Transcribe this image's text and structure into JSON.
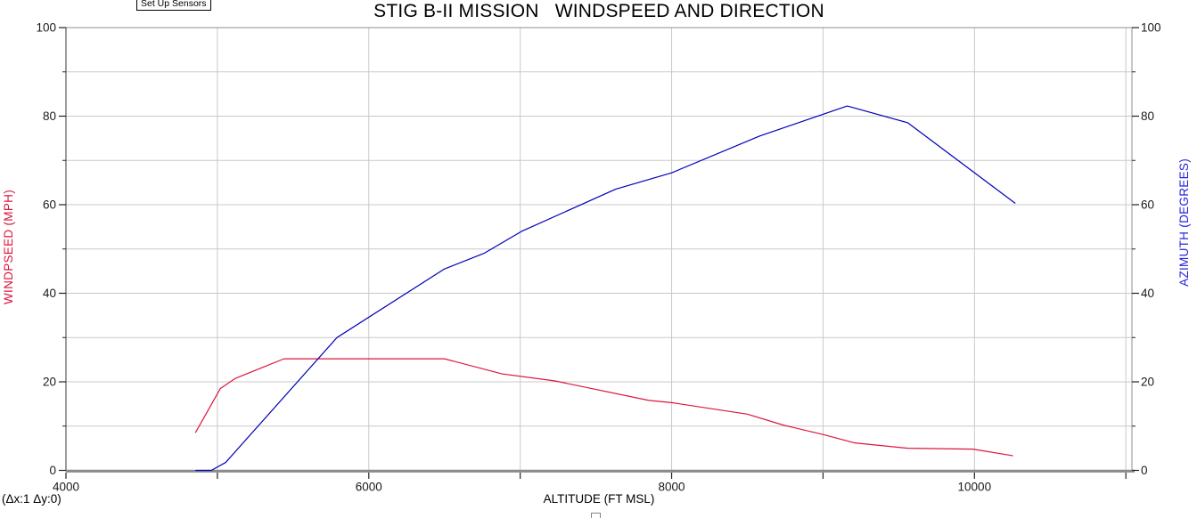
{
  "toolbar": {
    "setup_sensors_label": "Set Up Sensors"
  },
  "overlay": {
    "delta_readout": "(Δx:1 Δy:0)"
  },
  "chart_data": {
    "type": "line",
    "title": "STIG B-II MISSION   WINDSPEED AND DIRECTION",
    "grid": true,
    "plot_colors": {
      "gridline": "#c9c9c9",
      "spine_top_right": "#8f8f8f",
      "spine_left": "#3a3a3a",
      "spine_bottom": "#8a8a8a",
      "tick": "#222222",
      "tick_label": "#1a1a1a"
    },
    "x_axis": {
      "label": "ALTITUDE (FT MSL)",
      "min": 4000,
      "max": 11040,
      "major_ticks": [
        4000,
        6000,
        8000,
        10000
      ],
      "minor_ticks": [
        5000,
        7000,
        9000,
        11000
      ],
      "gridlines": [
        5000,
        6000,
        7000,
        8000,
        9000,
        10000,
        11000
      ]
    },
    "y_axis_left": {
      "label": "WINDPSEED (MPH)",
      "color": "#dc143c",
      "min": 0,
      "max": 100,
      "major_ticks": [
        0,
        20,
        40,
        60,
        80,
        100
      ],
      "minor_ticks": [
        10,
        30,
        50,
        70,
        90
      ],
      "gridlines": [
        10,
        20,
        30,
        40,
        50,
        60,
        70,
        80,
        90
      ]
    },
    "y_axis_right": {
      "label": "AZIMUTH (DEGREES)",
      "color": "#2222dd",
      "min": 0,
      "max": 100,
      "major_ticks": [
        0,
        20,
        40,
        60,
        80,
        100
      ],
      "minor_ticks": [
        10,
        30,
        50,
        70,
        90
      ]
    },
    "series": [
      {
        "name": "windspeed",
        "axis": "left",
        "color": "#dc143c",
        "points": [
          [
            4855,
            8.5
          ],
          [
            5020,
            18.5
          ],
          [
            5120,
            20.8
          ],
          [
            5280,
            23.0
          ],
          [
            5440,
            25.2
          ],
          [
            6500,
            25.2
          ],
          [
            6880,
            21.8
          ],
          [
            7230,
            20.2
          ],
          [
            7850,
            15.8
          ],
          [
            8000,
            15.3
          ],
          [
            8500,
            12.7
          ],
          [
            8740,
            10.2
          ],
          [
            9000,
            8.1
          ],
          [
            9210,
            6.2
          ],
          [
            9560,
            5.0
          ],
          [
            9990,
            4.8
          ],
          [
            10255,
            3.3
          ]
        ]
      },
      {
        "name": "azimuth",
        "axis": "right",
        "color": "#0000b8",
        "points": [
          [
            4855,
            0
          ],
          [
            4960,
            0
          ],
          [
            5055,
            1.8
          ],
          [
            5790,
            30.0
          ],
          [
            6500,
            45.5
          ],
          [
            6760,
            49.0
          ],
          [
            7010,
            54.0
          ],
          [
            7630,
            63.5
          ],
          [
            8000,
            67.2
          ],
          [
            8580,
            75.5
          ],
          [
            9160,
            82.3
          ],
          [
            9560,
            78.5
          ],
          [
            10270,
            60.3
          ]
        ]
      }
    ]
  }
}
